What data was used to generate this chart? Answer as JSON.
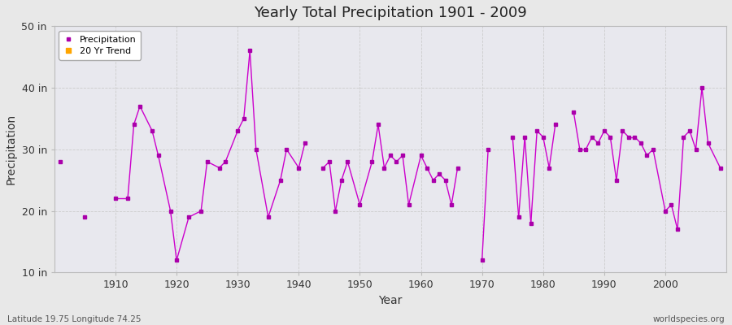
{
  "title": "Yearly Total Precipitation 1901 - 2009",
  "xlabel": "Year",
  "ylabel": "Precipitation",
  "xlim": [
    1900,
    2010
  ],
  "ylim": [
    10,
    50
  ],
  "yticks": [
    10,
    20,
    30,
    40,
    50
  ],
  "ytick_labels": [
    "10 in",
    "20 in",
    "30 in",
    "40 in",
    "50 in"
  ],
  "xticks": [
    1910,
    1920,
    1930,
    1940,
    1950,
    1960,
    1970,
    1980,
    1990,
    2000
  ],
  "line_color": "#cc00cc",
  "marker_color": "#aa00aa",
  "marker": "s",
  "legend_precipitation": "Precipitation",
  "legend_trend": "20 Yr Trend",
  "trend_color": "#FFA500",
  "bg_color": "#e8e8e8",
  "plot_bg": "#e8e8ee",
  "footer_left": "Latitude 19.75 Longitude 74.25",
  "footer_right": "worldspecies.org",
  "years": [
    1901,
    1905,
    1910,
    1912,
    1913,
    1914,
    1916,
    1917,
    1919,
    1920,
    1922,
    1924,
    1925,
    1927,
    1928,
    1930,
    1931,
    1932,
    1933,
    1935,
    1937,
    1938,
    1940,
    1941,
    1944,
    1945,
    1946,
    1947,
    1948,
    1950,
    1952,
    1953,
    1954,
    1955,
    1956,
    1957,
    1958,
    1960,
    1961,
    1962,
    1963,
    1964,
    1965,
    1966,
    1970,
    1971,
    1975,
    1976,
    1977,
    1978,
    1979,
    1980,
    1981,
    1982,
    1985,
    1986,
    1987,
    1988,
    1989,
    1990,
    1991,
    1992,
    1993,
    1994,
    1995,
    1996,
    1997,
    1998,
    2000,
    2001,
    2002,
    2003,
    2004,
    2005,
    2006,
    2007,
    2009
  ],
  "values": [
    28,
    19,
    22,
    22,
    34,
    37,
    33,
    29,
    20,
    12,
    19,
    20,
    28,
    27,
    28,
    33,
    35,
    46,
    30,
    19,
    25,
    30,
    27,
    31,
    27,
    28,
    20,
    25,
    28,
    21,
    28,
    34,
    27,
    29,
    28,
    29,
    21,
    29,
    27,
    25,
    26,
    25,
    21,
    27,
    12,
    30,
    32,
    19,
    32,
    18,
    33,
    32,
    27,
    34,
    36,
    30,
    30,
    32,
    31,
    33,
    32,
    25,
    33,
    32,
    32,
    31,
    29,
    30,
    20,
    21,
    17,
    32,
    33,
    30,
    40,
    31,
    27
  ]
}
